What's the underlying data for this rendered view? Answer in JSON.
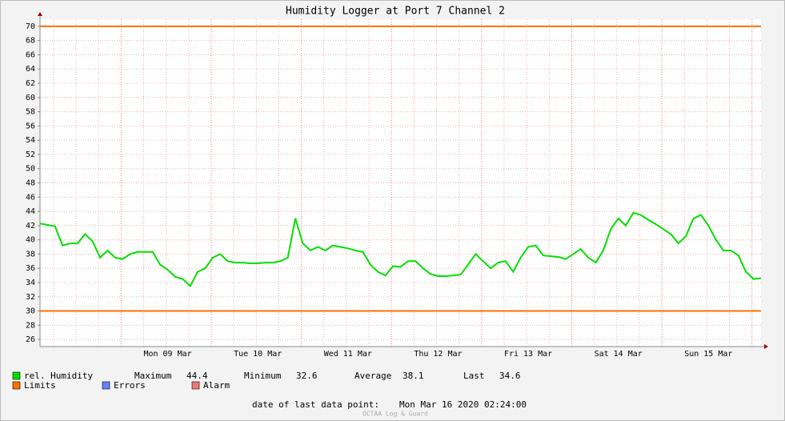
{
  "chart_data": {
    "type": "line",
    "title": "Humidity Logger at Port 7 Channel 2",
    "categories": [
      null,
      null,
      null,
      null,
      null,
      null,
      null,
      null,
      null,
      null,
      null,
      null,
      null,
      null,
      null,
      null,
      null,
      "Mon 09 Mar",
      null,
      null,
      null,
      null,
      null,
      null,
      null,
      null,
      null,
      null,
      null,
      "Tue 10 Mar",
      null,
      null,
      null,
      null,
      null,
      null,
      null,
      null,
      null,
      null,
      null,
      "Wed 11 Mar",
      null,
      null,
      null,
      null,
      null,
      null,
      null,
      null,
      null,
      null,
      null,
      "Thu 12 Mar",
      null,
      null,
      null,
      null,
      null,
      null,
      null,
      null,
      null,
      null,
      null,
      "Fri 13 Mar",
      null,
      null,
      null,
      null,
      null,
      null,
      null,
      null,
      null,
      null,
      null,
      "Sat 14 Mar",
      null,
      null,
      null,
      null,
      null,
      null,
      null,
      null,
      null,
      null,
      null,
      "Sun 15 Mar",
      null,
      null,
      null,
      null,
      null,
      null,
      null
    ],
    "series": [
      {
        "name": "rel. Humidity",
        "color": "#00e000",
        "values": [
          42.3,
          42.1,
          41.9,
          39.2,
          39.5,
          39.5,
          40.8,
          39.8,
          37.5,
          38.5,
          37.5,
          37.3,
          38.0,
          38.3,
          38.3,
          38.3,
          36.5,
          35.8,
          34.8,
          34.5,
          33.5,
          35.5,
          36.0,
          37.5,
          38.0,
          37.0,
          36.8,
          36.8,
          36.7,
          36.7,
          36.8,
          36.8,
          37.0,
          37.5,
          43.0,
          39.5,
          38.5,
          39.0,
          38.5,
          39.2,
          39.0,
          38.8,
          38.5,
          38.3,
          36.5,
          35.5,
          35.0,
          36.3,
          36.2,
          37.0,
          37.0,
          36.0,
          35.2,
          34.9,
          34.9,
          35.0,
          35.1,
          36.5,
          38.0,
          37.0,
          36.0,
          36.8,
          37.0,
          35.5,
          37.5,
          39.0,
          39.2,
          37.8,
          37.7,
          37.6,
          37.3,
          38.0,
          38.7,
          37.5,
          36.8,
          38.5,
          41.5,
          43.0,
          42.0,
          43.8,
          43.5,
          42.8,
          42.2,
          41.5,
          40.8,
          39.5,
          40.5,
          43.0,
          43.5,
          42.0,
          40.0,
          38.5,
          38.5,
          37.8,
          35.5,
          34.5,
          34.6
        ]
      }
    ],
    "limits": {
      "name": "Limits",
      "color": "#ff7000",
      "values": [
        30,
        70
      ]
    },
    "legend_extra": [
      {
        "name": "Errors",
        "color": "#6a80ff"
      },
      {
        "name": "Alarm",
        "color": "#f07878"
      }
    ],
    "stats": [
      {
        "label": "Maximum",
        "value": 44.4
      },
      {
        "label": "Minimum",
        "value": 32.6
      },
      {
        "label": "Average",
        "value": 38.1
      },
      {
        "label": "Last",
        "value": 34.6
      }
    ],
    "last_point_label": "date of last data point:",
    "last_point": "Mon Mar 16 2020 02:24:00",
    "footer": "OCTAA Log & Guard",
    "ylim": [
      25,
      71
    ],
    "yticks": [
      26,
      28,
      30,
      32,
      34,
      36,
      38,
      40,
      42,
      44,
      46,
      48,
      50,
      52,
      54,
      56,
      58,
      60,
      62,
      64,
      66,
      68,
      70
    ],
    "grid": true
  }
}
